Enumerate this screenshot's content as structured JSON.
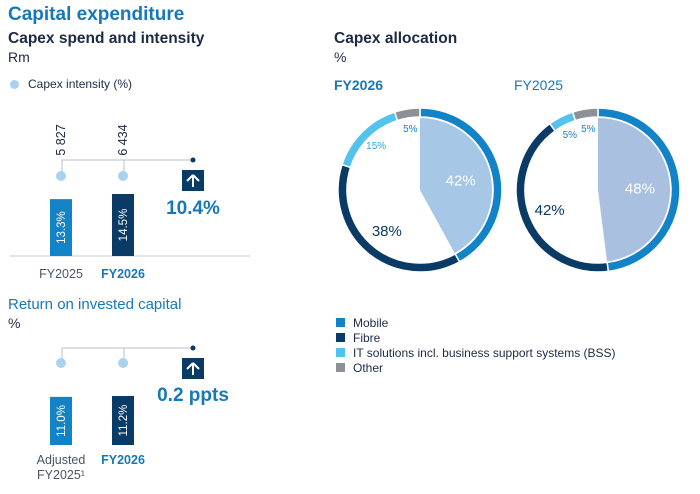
{
  "title": "Capital expenditure",
  "capex_panel": {
    "title": "Capex spend and intensity",
    "unit": "Rm",
    "legend": "Capex intensity (%)"
  },
  "roic_panel": {
    "title": "Return on invested capital",
    "unit": "%"
  },
  "allocation_panel": {
    "title": "Capex allocation",
    "unit": "%"
  },
  "legend": [
    {
      "label": "Mobile",
      "color": "#1283c7"
    },
    {
      "label": "Fibre",
      "color": "#0a3a66"
    },
    {
      "label": "IT solutions incl. business support systems (BSS)",
      "color": "#53c3ee"
    },
    {
      "label": "Other",
      "color": "#8c9197"
    }
  ],
  "chart_data": [
    {
      "type": "bar",
      "title": "Capex spend and intensity",
      "unit": "Rm",
      "categories": [
        "FY2025",
        "FY2026"
      ],
      "values": [
        5827,
        6434
      ],
      "value_labels": [
        "5 827",
        "6 434"
      ],
      "series": [
        {
          "name": "Capex intensity (%)",
          "values": [
            13.3,
            14.5
          ],
          "labels": [
            "13.3%",
            "14.5%"
          ]
        }
      ],
      "change": "10.4%",
      "colors": [
        "#1283c7",
        "#0a3a66"
      ]
    },
    {
      "type": "bar",
      "title": "Return on invested capital",
      "unit": "%",
      "categories": [
        "Adjusted FY2025¹",
        "FY2026"
      ],
      "values": [
        11.0,
        11.2
      ],
      "value_labels": [
        "11.0%",
        "11.2%"
      ],
      "change": "0.2 ppts",
      "colors": [
        "#1283c7",
        "#0a3a66"
      ]
    },
    {
      "type": "pie",
      "title": "FY2026",
      "categories": [
        "Mobile",
        "Fibre",
        "IT solutions incl. business support systems (BSS)",
        "Other"
      ],
      "values": [
        42,
        38,
        15,
        5
      ],
      "labels": [
        "42%",
        "38%",
        "15%",
        "5%"
      ]
    },
    {
      "type": "pie",
      "title": "FY2025",
      "categories": [
        "Mobile",
        "Fibre",
        "IT solutions incl. business support systems (BSS)",
        "Other"
      ],
      "values": [
        48,
        42,
        5,
        5
      ],
      "labels": [
        "48%",
        "42%",
        "5%",
        "5%"
      ]
    }
  ]
}
